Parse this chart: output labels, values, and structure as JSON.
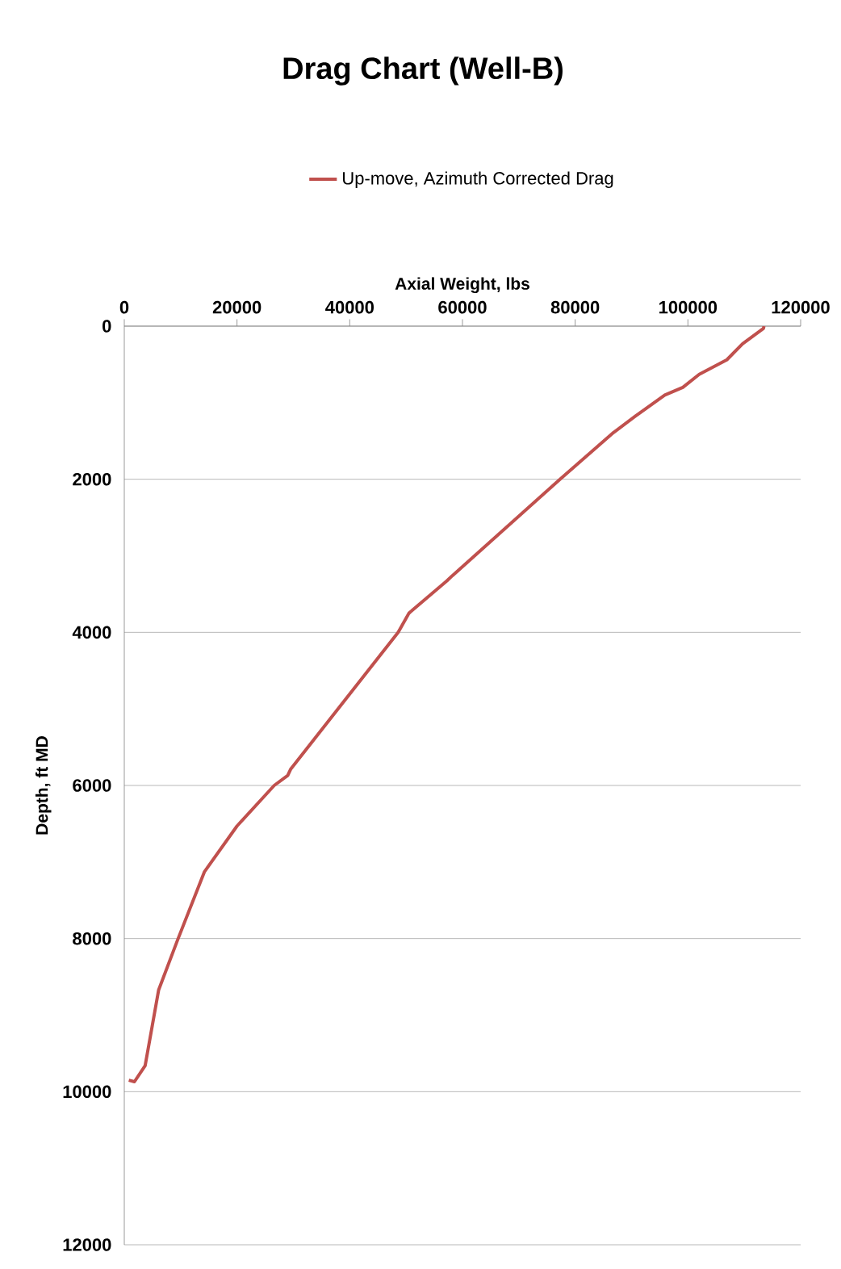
{
  "chart_data": {
    "type": "line",
    "title": "Drag Chart (Well-B)",
    "xlabel": "Axial Weight, lbs",
    "ylabel": "Depth, ft MD",
    "xlim": [
      0,
      120000
    ],
    "xticks": [
      0,
      20000,
      40000,
      60000,
      80000,
      100000,
      120000
    ],
    "ylim": [
      12000,
      0
    ],
    "yticks": [
      0,
      2000,
      4000,
      6000,
      8000,
      10000,
      12000
    ],
    "grid": "y",
    "legend": "top",
    "marker": "none",
    "line_style": "solid",
    "series": [
      {
        "name": "Up-move, Azimuth Corrected Drag",
        "color": "#c0504d",
        "x": [
          113500,
          113400,
          109700,
          106900,
          102000,
          99100,
          95900,
          90600,
          86800,
          77300,
          58200,
          57200,
          50500,
          48600,
          29500,
          29000,
          26600,
          20000,
          14200,
          9500,
          6100,
          3700,
          1800,
          800
        ],
        "values": [
          0,
          30,
          230,
          440,
          630,
          800,
          900,
          1180,
          1390,
          2000,
          3260,
          3330,
          3750,
          4000,
          5790,
          5870,
          6000,
          6530,
          7130,
          8010,
          8670,
          9660,
          9870,
          9850
        ]
      }
    ]
  }
}
